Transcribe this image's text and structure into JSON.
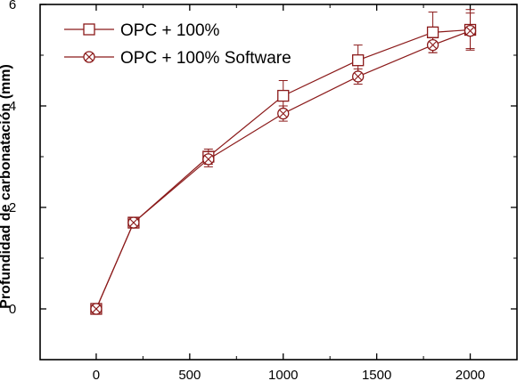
{
  "chart_data": {
    "type": "line",
    "title": "",
    "xlabel": "",
    "ylabel": "Profundidad de carbonatación (mm)",
    "xlim": [
      -300,
      2250
    ],
    "ylim": [
      -1,
      6
    ],
    "xticks": [
      0,
      500,
      1000,
      1500,
      2000
    ],
    "yticks": [
      0,
      2,
      4,
      6
    ],
    "grid": false,
    "legend_position": "top-left",
    "series": [
      {
        "name": "OPC + 100%",
        "marker": "open-square",
        "color": "#8b1a1a",
        "x": [
          0,
          200,
          600,
          1000,
          1400,
          1800,
          2000
        ],
        "y": [
          0,
          1.7,
          3.0,
          4.2,
          4.9,
          5.45,
          5.5
        ],
        "err": [
          0,
          0.1,
          0.15,
          0.3,
          0.3,
          0.4,
          0.4
        ]
      },
      {
        "name": "OPC + 100% Software",
        "marker": "crossed-circle",
        "color": "#8b1a1a",
        "x": [
          0,
          200,
          600,
          1000,
          1400,
          1800,
          2000
        ],
        "y": [
          0,
          1.7,
          2.95,
          3.85,
          4.58,
          5.2,
          5.48
        ],
        "err": [
          0,
          0.1,
          0.15,
          0.15,
          0.15,
          0.15,
          0.35
        ]
      }
    ]
  }
}
